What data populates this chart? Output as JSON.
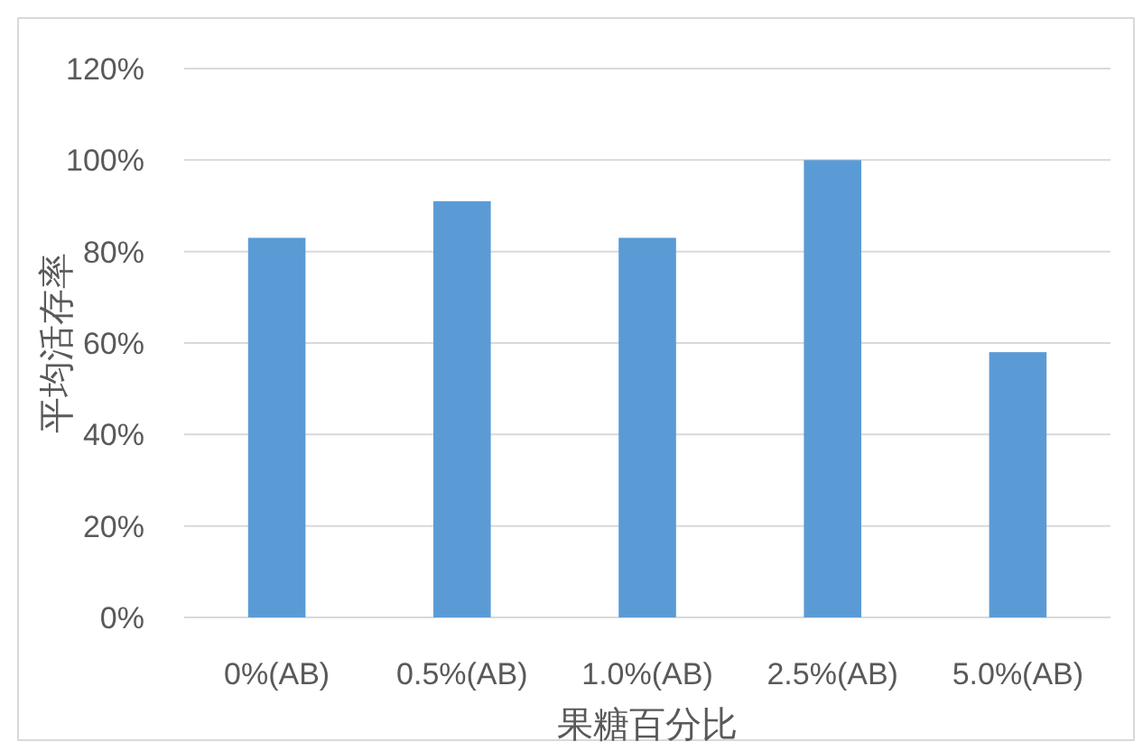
{
  "chart_data": {
    "type": "bar",
    "xlabel": "果糖百分比",
    "ylabel": "平均活存率",
    "categories": [
      "0%(AB)",
      "0.5%(AB)",
      "1.0%(AB)",
      "2.5%(AB)",
      "5.0%(AB)"
    ],
    "values": [
      83,
      91,
      83,
      100,
      58
    ],
    "color": "#5b9bd5",
    "ylim": [
      0,
      120
    ],
    "yticks": [
      {
        "value": 0,
        "label": "0%"
      },
      {
        "value": 20,
        "label": "20%"
      },
      {
        "value": 40,
        "label": "40%"
      },
      {
        "value": 60,
        "label": "60%"
      },
      {
        "value": 80,
        "label": "80%"
      },
      {
        "value": 100,
        "label": "100%"
      },
      {
        "value": 120,
        "label": "120%"
      }
    ],
    "grid": "y"
  }
}
